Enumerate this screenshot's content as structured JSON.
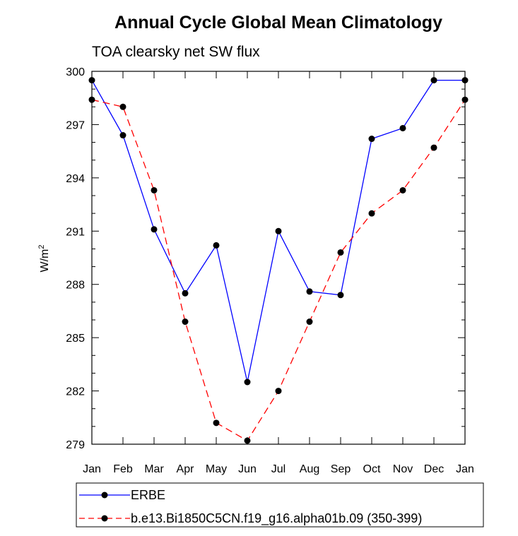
{
  "chart_data": {
    "type": "line",
    "title": "Annual Cycle Global Mean Climatology",
    "subtitle": "TOA clearsky net SW flux",
    "xlabel": "",
    "ylabel": "W/m",
    "ylabel_superscript": "2",
    "categories": [
      "Jan",
      "Feb",
      "Mar",
      "Apr",
      "May",
      "Jun",
      "Jul",
      "Aug",
      "Sep",
      "Oct",
      "Nov",
      "Dec",
      "Jan"
    ],
    "ylim": [
      279,
      300
    ],
    "yticks": [
      279,
      282,
      285,
      288,
      291,
      294,
      297,
      300
    ],
    "ytick_labels": [
      "279",
      "282",
      "285",
      "288",
      "291",
      "294",
      "297",
      "300"
    ],
    "series": [
      {
        "name": "ERBE",
        "color": "#0000ff",
        "dash": "solid",
        "values": [
          299.5,
          296.4,
          291.1,
          287.5,
          290.2,
          282.5,
          291.0,
          287.6,
          287.4,
          296.2,
          296.8,
          299.5,
          299.5
        ]
      },
      {
        "name": "b.e13.Bi1850C5CN.f19_g16.alpha01b.09 (350-399)",
        "color": "#ff0000",
        "dash": "dashed",
        "values": [
          298.4,
          298.0,
          293.3,
          285.9,
          280.2,
          279.2,
          282.0,
          285.9,
          289.8,
          292.0,
          293.3,
          295.7,
          298.4
        ]
      }
    ],
    "legend": "bottom-left",
    "grid": false
  }
}
